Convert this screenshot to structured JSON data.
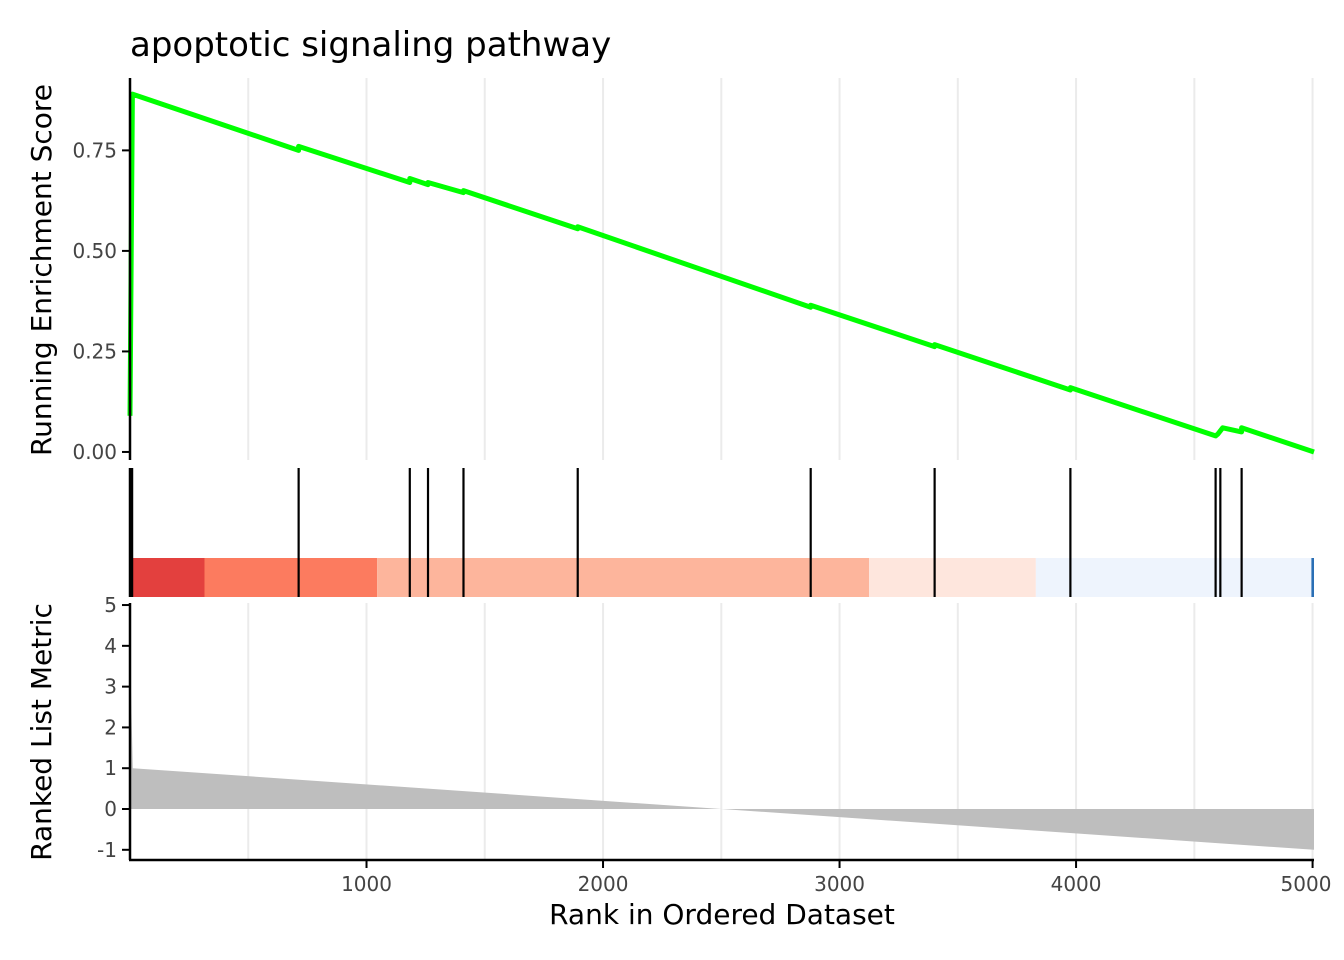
{
  "chart_data": {
    "type": "line",
    "title": "apoptotic signaling pathway",
    "xlabel": "Rank in Ordered Dataset",
    "xlim": [
      0,
      5006
    ],
    "x_ticks": [
      1000,
      2000,
      3000,
      4000,
      5000
    ],
    "x_tick_labels": [
      "1000",
      "2000",
      "3000",
      "4000",
      "5000"
    ],
    "running_es": {
      "ylabel": "Running Enrichment Score",
      "ylim": [
        -0.02,
        0.93
      ],
      "y_ticks": [
        0.0,
        0.25,
        0.5,
        0.75
      ],
      "y_tick_labels": [
        "0.00",
        "0.25",
        "0.50",
        "0.75"
      ],
      "color": "#00ff00",
      "points": [
        [
          0,
          0.09
        ],
        [
          10,
          0.89
        ],
        [
          713,
          0.75
        ],
        [
          713,
          0.76
        ],
        [
          1183,
          0.67
        ],
        [
          1183,
          0.68
        ],
        [
          1260,
          0.665
        ],
        [
          1260,
          0.67
        ],
        [
          1410,
          0.645
        ],
        [
          1410,
          0.65
        ],
        [
          1893,
          0.555
        ],
        [
          1893,
          0.56
        ],
        [
          2878,
          0.36
        ],
        [
          2878,
          0.365
        ],
        [
          3402,
          0.262
        ],
        [
          3402,
          0.267
        ],
        [
          3976,
          0.154
        ],
        [
          3976,
          0.16
        ],
        [
          4590,
          0.04
        ],
        [
          4600,
          0.045
        ],
        [
          4620,
          0.06
        ],
        [
          4700,
          0.05
        ],
        [
          4700,
          0.06
        ],
        [
          5006,
          0.0
        ]
      ]
    },
    "hits": {
      "positions": [
        1,
        3,
        5,
        7,
        9,
        713,
        1183,
        1260,
        1410,
        1893,
        2878,
        3402,
        3976,
        4590,
        4610,
        4700
      ],
      "color": "#000000"
    },
    "color_bands": [
      {
        "from": 0,
        "to": 315,
        "color": "#e3403e"
      },
      {
        "from": 315,
        "to": 1045,
        "color": "#fc7b5f"
      },
      {
        "from": 1045,
        "to": 3125,
        "color": "#fdb59c"
      },
      {
        "from": 3125,
        "to": 3830,
        "color": "#fee6dd"
      },
      {
        "from": 3830,
        "to": 4995,
        "color": "#eef4fd"
      },
      {
        "from": 4995,
        "to": 5006,
        "color": "#2a6fb5"
      }
    ],
    "ranked_metric": {
      "ylabel": "Ranked List Metric",
      "ylim": [
        -1.25,
        5.05
      ],
      "y_ticks": [
        -1,
        0,
        1,
        2,
        3,
        4,
        5
      ],
      "y_tick_labels": [
        "-1",
        "0",
        "1",
        "2",
        "3",
        "4",
        "5"
      ],
      "fill_color": "#bebebe",
      "points": [
        [
          0,
          5.0
        ],
        [
          4,
          3.0
        ],
        [
          12,
          1.0
        ],
        [
          2500,
          0.0
        ],
        [
          5006,
          -1.0
        ]
      ]
    }
  }
}
